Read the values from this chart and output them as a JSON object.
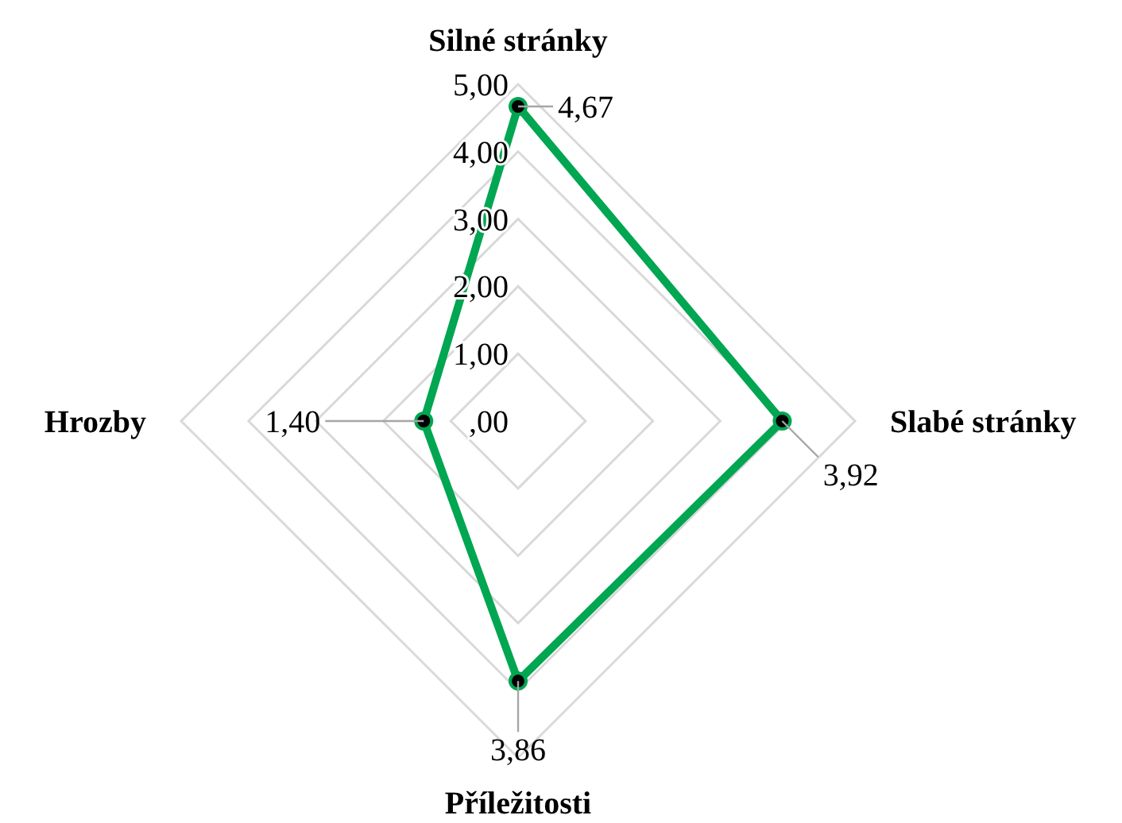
{
  "chart_data": {
    "type": "radar",
    "categories": [
      "Silné stránky",
      "Slabé stránky",
      "Příležitosti",
      "Hrozby"
    ],
    "series": [
      {
        "color": "#00a651",
        "values": [
          4.67,
          3.92,
          3.86,
          1.4
        ],
        "value_labels": [
          "4,67",
          "3,92",
          "3,86",
          "1,40"
        ]
      }
    ],
    "ylim": [
      0,
      5
    ],
    "yticks": [
      {
        "value": 0,
        "label": ",00"
      },
      {
        "value": 1,
        "label": "1,00"
      },
      {
        "value": 2,
        "label": "2,00"
      },
      {
        "value": 3,
        "label": "3,00"
      },
      {
        "value": 4,
        "label": "4,00"
      },
      {
        "value": 5,
        "label": "5,00"
      }
    ],
    "grid": true,
    "marker": "circle"
  }
}
